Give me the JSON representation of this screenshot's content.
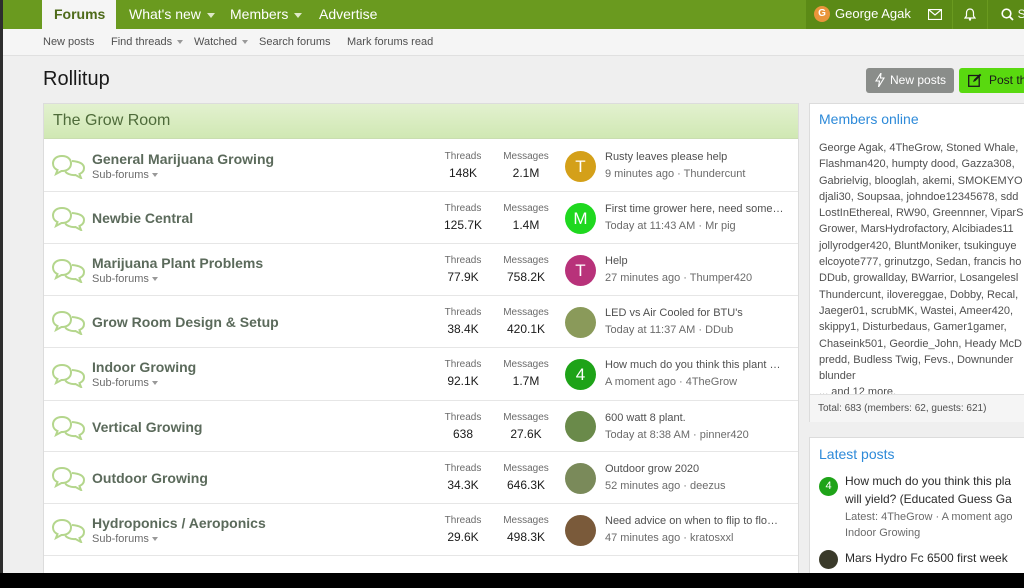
{
  "nav": {
    "tabs": [
      "Forums",
      "What's new",
      "Members",
      "Advertise"
    ],
    "user_initial": "G",
    "user_name": "George Agak",
    "search_label": "S"
  },
  "subnav": [
    "New posts",
    "Find threads",
    "Watched",
    "Search forums",
    "Mark forums read"
  ],
  "page_title": "Rollitup",
  "buttons": {
    "new_posts": "New posts",
    "post_thread": "Post th"
  },
  "section_title": "The Grow Room",
  "labels": {
    "threads": "Threads",
    "messages": "Messages",
    "subforums": "Sub-forums"
  },
  "forums": [
    {
      "name": "General Marijuana Growing",
      "sub": true,
      "threads": "148K",
      "messages": "2.1M",
      "av": "T",
      "av_color": "#d4a019",
      "lp_title": "Rusty leaves please help",
      "lp_meta": "9 minutes ago · Thundercunt"
    },
    {
      "name": "Newbie Central",
      "sub": false,
      "threads": "125.7K",
      "messages": "1.4M",
      "av": "M",
      "av_color": "#1fd81f",
      "lp_title": "First time grower here, need some…",
      "lp_meta": "Today at 11:43 AM · Mr pig"
    },
    {
      "name": "Marijuana Plant Problems",
      "sub": true,
      "threads": "77.9K",
      "messages": "758.2K",
      "av": "T",
      "av_color": "#b8327a",
      "lp_title": "Help",
      "lp_meta": "27 minutes ago · Thumper420"
    },
    {
      "name": "Grow Room Design & Setup",
      "sub": false,
      "threads": "38.4K",
      "messages": "420.1K",
      "av": "",
      "av_color": "#8a9a5a",
      "lp_title": "LED vs Air Cooled for BTU's",
      "lp_meta": "Today at 11:37 AM · DDub"
    },
    {
      "name": "Indoor Growing",
      "sub": true,
      "threads": "92.1K",
      "messages": "1.7M",
      "av": "4",
      "av_color": "#1ea318",
      "lp_title": "How much do you think this plant …",
      "lp_meta": "A moment ago · 4TheGrow"
    },
    {
      "name": "Vertical Growing",
      "sub": false,
      "threads": "638",
      "messages": "27.6K",
      "av": "",
      "av_color": "#6a8a4a",
      "lp_title": "600 watt 8 plant.",
      "lp_meta": "Today at 8:38 AM · pinner420"
    },
    {
      "name": "Outdoor Growing",
      "sub": false,
      "threads": "34.3K",
      "messages": "646.3K",
      "av": "",
      "av_color": "#7a8a5a",
      "lp_title": "Outdoor grow 2020",
      "lp_meta": "52 minutes ago · deezus"
    },
    {
      "name": "Hydroponics / Aeroponics",
      "sub": true,
      "threads": "29.6K",
      "messages": "498.3K",
      "av": "",
      "av_color": "#7a5a3a",
      "lp_title": "Need advice on when to flip to flo…",
      "lp_meta": "47 minutes ago · kratosxxl"
    }
  ],
  "members_online": {
    "title": "Members online",
    "lines": [
      "George Agak, 4TheGrow, Stoned Whale,",
      "Flashman420, humpty dood, Gazza308,",
      "Gabrielvig, blooglah, akemi, SMOKEMYO",
      "djali30, Soupsaa, johndoe12345678, sdd",
      "LostInEthereal, RW90, Greennner, ViparS",
      "Grower, MarsHydrofactory, Alcibiades11",
      "jollyrodger420, BluntMoniker, tsukinguye",
      "elcoyote777, grinutzgo, Sedan, francis ho",
      "DDub, growallday, BWarrior, Losangelesl",
      "Thundercunt, ilovereggae, Dobby, Recal,",
      "Jaeger01, scrubMK, Wastei, Ameer420,",
      "skippy1, Disturbedaus, Gamer1gamer,",
      "Chaseink501, Geordie_John, Heady McD",
      "predd, Budless Twig, Fevs., Downunder",
      "blunder"
    ],
    "more": "... and 12 more.",
    "total": "Total: 683 (members: 62, guests: 621)"
  },
  "latest_posts": {
    "title": "Latest posts",
    "items": [
      {
        "av": "4",
        "av_color": "#1ea318",
        "title1": "How much do you think this pla",
        "title2": "will yield? (Educated Guess Ga",
        "meta1": "Latest: 4TheGrow · A moment ago",
        "meta2": "Indoor Growing"
      },
      {
        "av": "",
        "av_color": "#3a3a2a",
        "title1": "Mars Hydro Fc 6500 first week",
        "title2": "",
        "meta1": "",
        "meta2": ""
      }
    ]
  },
  "colors": {
    "brand": "#6a9a1f",
    "accent": "#2d8ad9",
    "post_button": "#59d90f"
  }
}
